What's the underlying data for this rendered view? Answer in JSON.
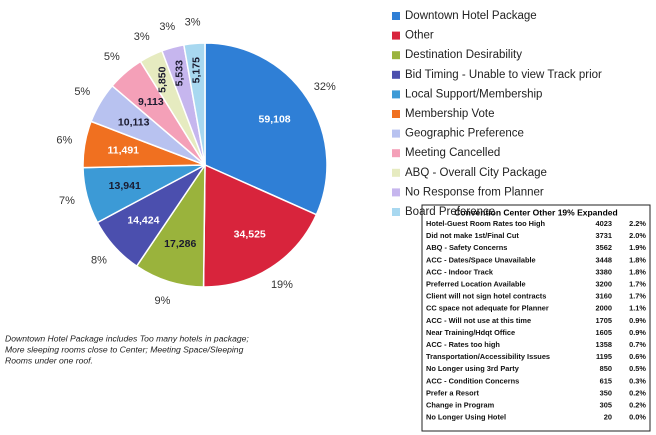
{
  "chart_data": {
    "type": "pie",
    "categories": [
      "Downtown Hotel Package",
      "Other",
      "Destination Desirability",
      "Bid Timing - Unable to view Track prior",
      "Local Support/Membership",
      "Membership Vote",
      "Geographic Preference",
      "Meeting Cancelled",
      "ABQ - Overall City Package",
      "No Response from Planner",
      "Board Preference"
    ],
    "values": [
      59108,
      34525,
      17286,
      14424,
      13941,
      11491,
      10113,
      9113,
      5850,
      5533,
      5175
    ],
    "value_labels": [
      "59,108",
      "34,525",
      "17,286",
      "14,424",
      "13,941",
      "11,491",
      "10,113",
      "9,113",
      "5,850",
      "5,533",
      "5,175"
    ],
    "percents": [
      32,
      19,
      9,
      8,
      7,
      6,
      5,
      5,
      3,
      3,
      3
    ],
    "percent_labels": [
      "32%",
      "19%",
      "9%",
      "8%",
      "7%",
      "6%",
      "5%",
      "5%",
      "3%",
      "3%",
      "3%"
    ],
    "colors": [
      "#2f7fd6",
      "#d8243c",
      "#9ab33c",
      "#4b4fae",
      "#3c9ad6",
      "#f07020",
      "#b8c2f0",
      "#f4a0b8",
      "#e6ebc0",
      "#c6b6ee",
      "#a8d8f0"
    ],
    "legend": "right"
  },
  "note": [
    "Downtown Hotel Package includes Too many hotels in package;",
    "More sleeping rooms close to Center; Meeting Space/Sleeping",
    "Rooms under one roof."
  ],
  "table": {
    "title": "Convention Center Other 19% Expanded",
    "rows": [
      [
        "Hotel-Guest Room Rates too High",
        "4023",
        "2.2%"
      ],
      [
        "Did not make 1st/Final Cut",
        "3731",
        "2.0%"
      ],
      [
        "ABQ - Safety Concerns",
        "3562",
        "1.9%"
      ],
      [
        "ACC - Dates/Space Unavailable",
        "3448",
        "1.8%"
      ],
      [
        "ACC - Indoor Track",
        "3380",
        "1.8%"
      ],
      [
        "Preferred Location Available",
        "3200",
        "1.7%"
      ],
      [
        "Client will not sign hotel contracts",
        "3160",
        "1.7%"
      ],
      [
        "CC space not adequate for Planner",
        "2000",
        "1.1%"
      ],
      [
        "ACC - Will not use at this time",
        "1705",
        "0.9%"
      ],
      [
        "Near Training/Hdqt Office",
        "1605",
        "0.9%"
      ],
      [
        "ACC - Rates too high",
        "1358",
        "0.7%"
      ],
      [
        "Transportation/Accessibility Issues",
        "1195",
        "0.6%"
      ],
      [
        "No Longer using 3rd Party",
        "850",
        "0.5%"
      ],
      [
        "ACC - Condition Concerns",
        "615",
        "0.3%"
      ],
      [
        "Prefer a Resort",
        "350",
        "0.2%"
      ],
      [
        "Change in Program",
        "305",
        "0.2%"
      ],
      [
        "No Longer Using Hotel",
        "20",
        "0.0%"
      ]
    ]
  }
}
